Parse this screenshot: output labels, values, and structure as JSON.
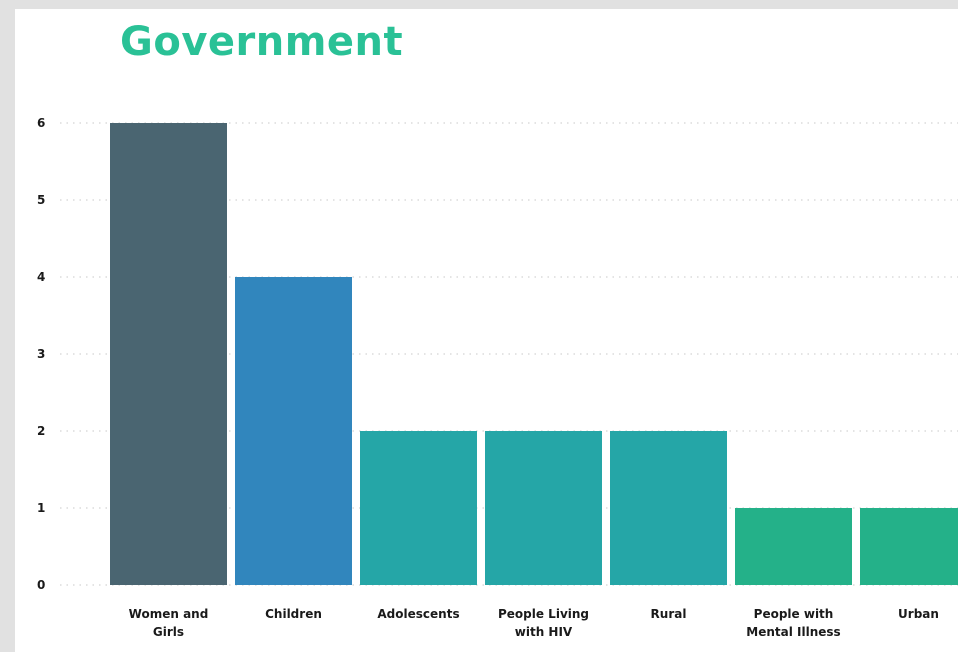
{
  "chart_data": {
    "type": "bar",
    "title": "Government",
    "xlabel": "",
    "ylabel": "",
    "ylim": [
      0,
      6
    ],
    "yticks": [
      "0",
      "1",
      "2",
      "3",
      "4",
      "5",
      "6"
    ],
    "grid": true,
    "categories": [
      "Women and Girls",
      "Children",
      "Adolescents",
      "People Living with HIV",
      "Rural",
      "People with Mental Illness",
      "Urban"
    ],
    "category_label_lines": [
      [
        "Women and",
        "Girls"
      ],
      [
        "Children"
      ],
      [
        "Adolescents"
      ],
      [
        "People Living",
        "with HIV"
      ],
      [
        "Rural"
      ],
      [
        "People with",
        "Mental Illness"
      ],
      [
        "Urban"
      ]
    ],
    "values": [
      6,
      4,
      2,
      2,
      2,
      1,
      1
    ],
    "colors": [
      "#4a6571",
      "#3186bd",
      "#25a6a7",
      "#25a6a7",
      "#25a6a7",
      "#24b189",
      "#24b189"
    ]
  }
}
